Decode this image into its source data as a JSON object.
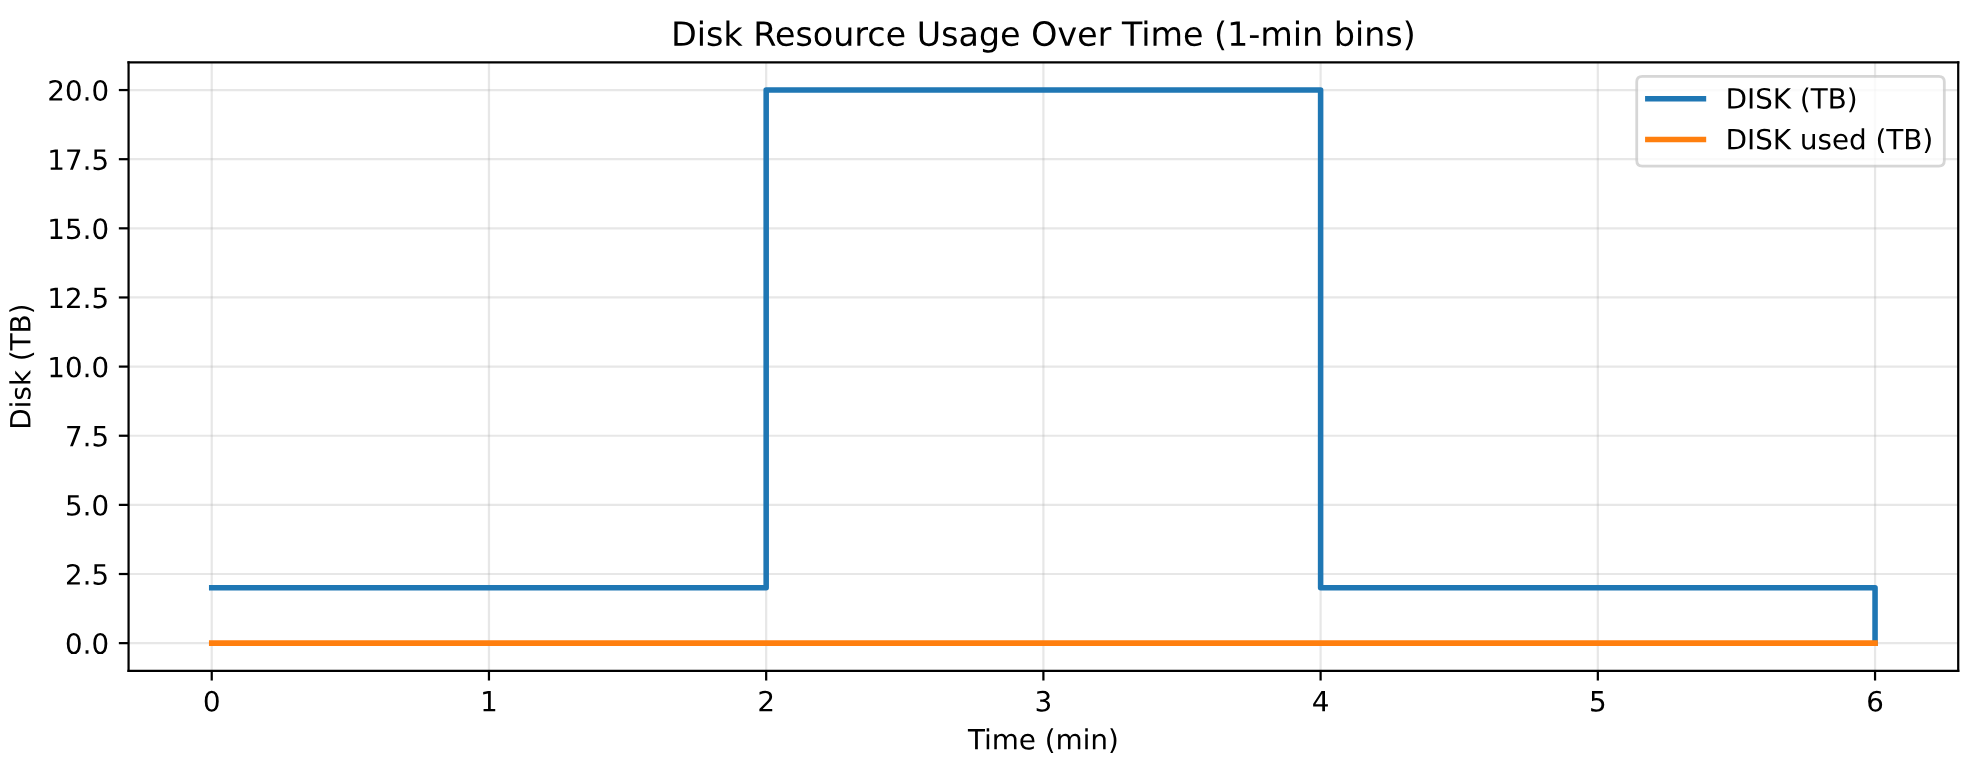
{
  "chart_data": {
    "type": "step",
    "title": "Disk Resource Usage Over Time (1-min bins)",
    "xlabel": "Time (min)",
    "ylabel": "Disk (TB)",
    "x": [
      0,
      1,
      2,
      3,
      4,
      5,
      6
    ],
    "series": [
      {
        "name": "DISK (TB)",
        "color": "#1f77b4",
        "values": [
          2,
          2,
          20,
          20,
          2,
          2,
          0
        ]
      },
      {
        "name": "DISK used (TB)",
        "color": "#ff7f0e",
        "values": [
          0,
          0,
          0,
          0,
          0,
          0,
          0
        ]
      }
    ],
    "xlim": [
      -0.3,
      6.3
    ],
    "xticks": [
      0,
      1,
      2,
      3,
      4,
      5,
      6
    ],
    "ylim": [
      -1,
      21
    ],
    "yticks": [
      {
        "value": 0,
        "label": "0.0"
      },
      {
        "value": 2.5,
        "label": "2.5"
      },
      {
        "value": 5,
        "label": "5.0"
      },
      {
        "value": 7.5,
        "label": "7.5"
      },
      {
        "value": 10,
        "label": "10.0"
      },
      {
        "value": 12.5,
        "label": "12.5"
      },
      {
        "value": 15,
        "label": "15.0"
      },
      {
        "value": 17.5,
        "label": "17.5"
      },
      {
        "value": 20,
        "label": "20.0"
      }
    ],
    "grid": true,
    "legend": "top right",
    "line_style": "solid"
  }
}
